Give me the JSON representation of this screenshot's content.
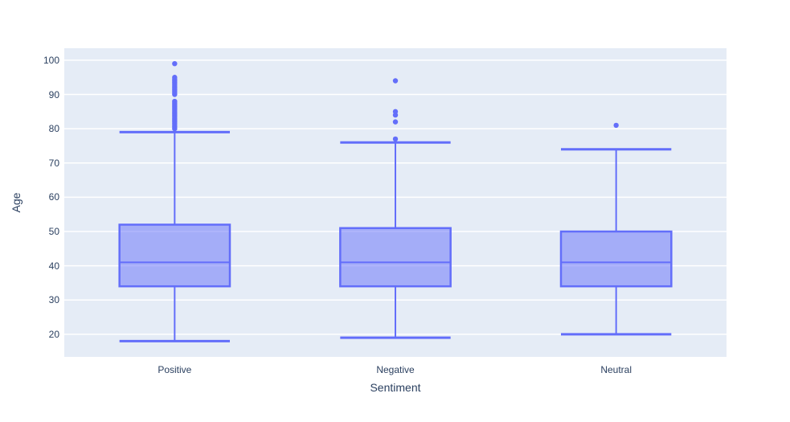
{
  "chart_data": {
    "type": "box",
    "title": "",
    "xlabel": "Sentiment",
    "ylabel": "Age",
    "categories": [
      "Positive",
      "Negative",
      "Neutral"
    ],
    "yticks": [
      20,
      30,
      40,
      50,
      60,
      70,
      80,
      90,
      100
    ],
    "ylim": [
      13.4,
      103.5
    ],
    "grid": true,
    "legend": "none",
    "series": [
      {
        "name": "Positive",
        "lower_whisker": 18,
        "q1": 34,
        "median": 41,
        "q3": 52,
        "upper_whisker": 79,
        "outliers": [
          80,
          80.5,
          81,
          81.5,
          82,
          82.5,
          83,
          83.5,
          84,
          84.5,
          85,
          85.5,
          86,
          86.5,
          87,
          87.5,
          88,
          90,
          90.5,
          91,
          91.5,
          92,
          92.5,
          93,
          93.5,
          94,
          94.5,
          95,
          99
        ]
      },
      {
        "name": "Negative",
        "lower_whisker": 19,
        "q1": 34,
        "median": 41,
        "q3": 51,
        "upper_whisker": 76,
        "outliers": [
          77,
          82,
          84,
          85,
          94
        ]
      },
      {
        "name": "Neutral",
        "lower_whisker": 20,
        "q1": 34,
        "median": 41,
        "q3": 50,
        "upper_whisker": 74,
        "outliers": [
          81
        ]
      }
    ],
    "colors": {
      "box_line": "#636efa",
      "box_fill": "rgba(99,110,250,0.5)",
      "plot_bg": "#e5ecf6",
      "grid_line": "#ffffff",
      "text": "#2a3f5f",
      "figure_bg": "#ffffff"
    }
  }
}
